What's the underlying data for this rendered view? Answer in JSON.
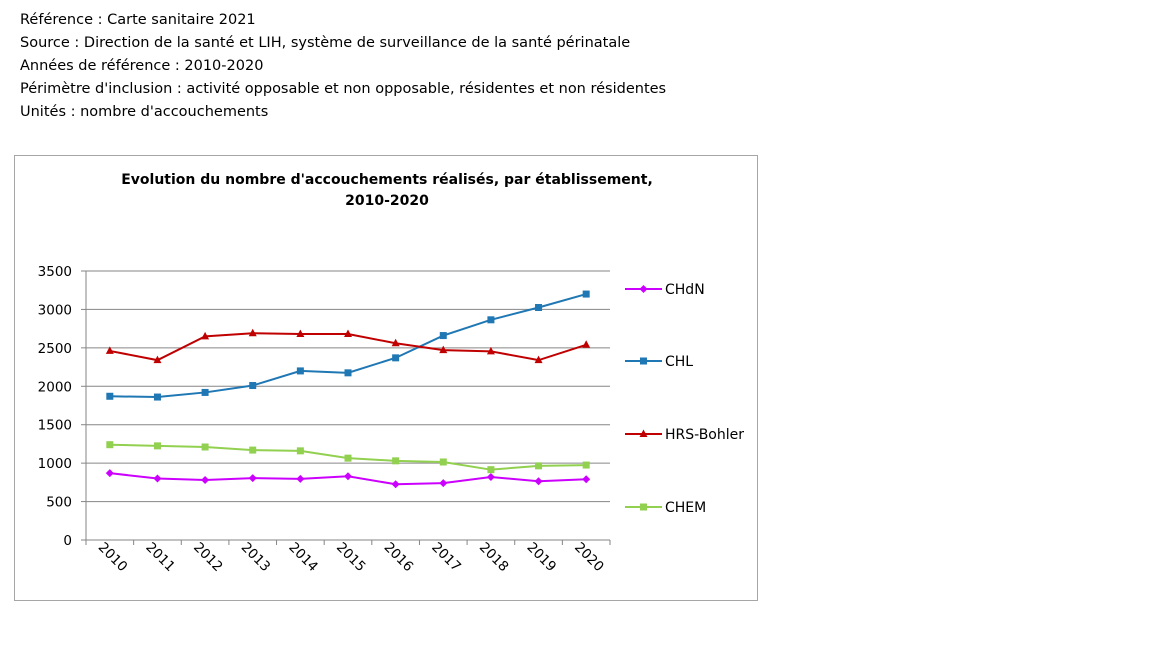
{
  "header": {
    "lines": [
      "Référence : Carte sanitaire 2021",
      "Source : Direction de la santé et LIH, système de surveillance de la santé périnatale",
      "Années de référence : 2010-2020",
      "Périmètre d'inclusion : activité opposable et non opposable, résidentes et non résidentes",
      "Unités : nombre d'accouchements"
    ]
  },
  "chart_data": {
    "type": "line",
    "title": "Evolution du nombre d'accouchements réalisés, par établissement,",
    "subtitle": "2010-2020",
    "xlabel": "",
    "ylabel": "",
    "x": [
      "2010",
      "2011",
      "2012",
      "2013",
      "2014",
      "2015",
      "2016",
      "2017",
      "2018",
      "2019",
      "2020"
    ],
    "ylim": [
      0,
      3500
    ],
    "yticks": [
      0,
      500,
      1000,
      1500,
      2000,
      2500,
      3000,
      3500
    ],
    "grid": true,
    "legend_position": "right",
    "series": [
      {
        "name": "CHdN",
        "color": "#cc00ff",
        "marker": "diamond",
        "values": [
          870,
          800,
          780,
          805,
          795,
          830,
          725,
          740,
          820,
          765,
          790
        ]
      },
      {
        "name": "CHL",
        "color": "#1f77b4",
        "marker": "square",
        "values": [
          1870,
          1860,
          1920,
          2010,
          2200,
          2175,
          2370,
          2660,
          2865,
          3025,
          3200
        ]
      },
      {
        "name": "HRS-Bohler",
        "color": "#c00000",
        "marker": "triangle",
        "values": [
          2460,
          2340,
          2650,
          2690,
          2680,
          2680,
          2560,
          2470,
          2455,
          2340,
          2540
        ]
      },
      {
        "name": "CHEM",
        "color": "#92d050",
        "marker": "square",
        "values": [
          1240,
          1225,
          1210,
          1170,
          1160,
          1065,
          1030,
          1015,
          915,
          965,
          975
        ]
      }
    ]
  }
}
